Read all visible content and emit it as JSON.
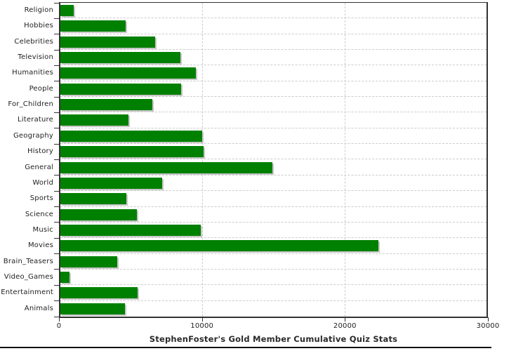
{
  "chart_data": {
    "type": "bar",
    "orientation": "horizontal",
    "title": "StephenFoster's Gold Member Cumulative Quiz Stats",
    "categories": [
      "Religion",
      "Hobbies",
      "Celebrities",
      "Television",
      "Humanities",
      "People",
      "For_Children",
      "Literature",
      "Geography",
      "History",
      "General",
      "World",
      "Sports",
      "Science",
      "Music",
      "Movies",
      "Brain_Teasers",
      "Video_Games",
      "Entertainment",
      "Animals"
    ],
    "values": [
      920,
      4590,
      6690,
      8450,
      9560,
      8480,
      6480,
      4800,
      10000,
      10070,
      14920,
      7170,
      4660,
      5380,
      9870,
      22400,
      4000,
      650,
      5450,
      4560
    ],
    "xlabel": "",
    "ylabel": "",
    "xlim": [
      0,
      30000
    ],
    "x_ticks": [
      0,
      10000,
      20000,
      30000
    ],
    "x_tick_labels": [
      "0",
      "10000",
      "20000",
      "30000"
    ],
    "grid": "dashed-light-gray",
    "legend": "none",
    "colors": {
      "bar": "#008000",
      "bar_shadow": "#c8c8c8",
      "gridline": "#cccccc",
      "frame": "#333333",
      "text": "#222222",
      "background": "#ffffff",
      "bottom_rule": "#111111"
    }
  }
}
